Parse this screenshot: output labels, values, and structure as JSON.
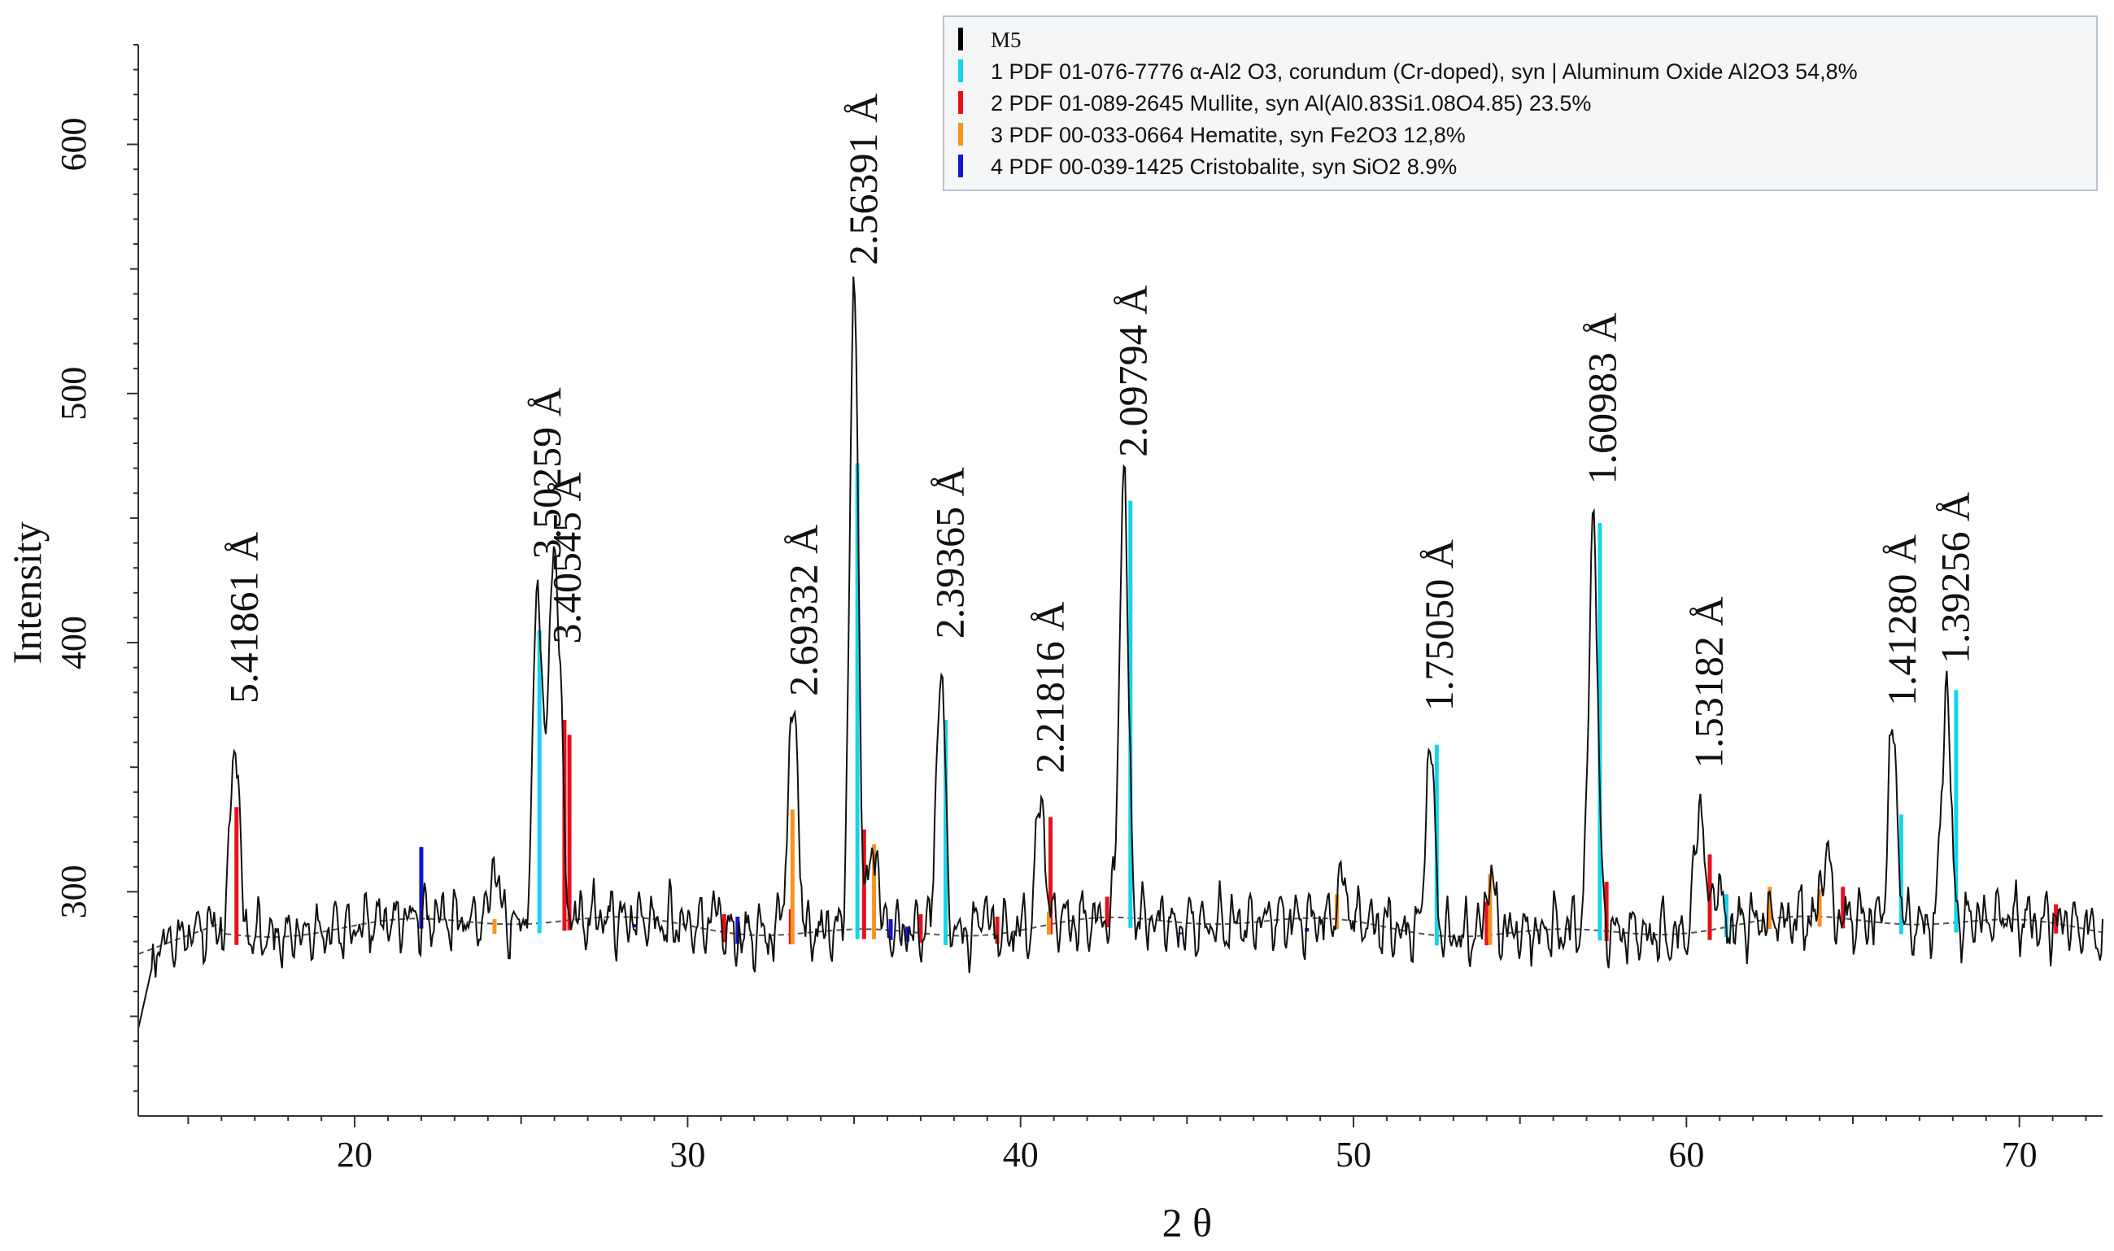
{
  "chart_data": {
    "type": "line",
    "title": "",
    "xlabel": "2 θ",
    "ylabel": "Intensity",
    "xlim": [
      13.5,
      72.5
    ],
    "ylim": [
      210,
      640
    ],
    "x_ticks": [
      20,
      30,
      40,
      50,
      60,
      70
    ],
    "y_ticks": [
      300,
      400,
      500,
      600
    ],
    "x_tick_labels": [
      "20",
      "30",
      "40",
      "50",
      "60",
      "70"
    ],
    "y_tick_labels": [
      "300",
      "400",
      "500",
      "600"
    ],
    "baseline_style": "dashed",
    "legend": {
      "placement": "top-right",
      "entries": [
        {
          "label": "M5",
          "color": "#000000"
        },
        {
          "label": "1 PDF 01-076-7776 α-Al2 O3, corundum (Cr-doped), syn | Aluminum Oxide Al2O3 54,8%",
          "color": "#17d4e8"
        },
        {
          "label": "2 PDF 01-089-2645 Mullite, syn Al(Al0.83Si1.08O4.85) 23.5%",
          "color": "#e8101a"
        },
        {
          "label": "3 PDF 00-033-0664 Hematite, syn Fe2O3 12,8%",
          "color": "#f5941e"
        },
        {
          "label": "4 PDF 00-039-1425 Cristobalite, syn SiO2 8.9%",
          "color": "#1414d2"
        }
      ]
    },
    "peaks": [
      {
        "two_theta": 16.4,
        "intensity": 369,
        "label": "5.41861 Å"
      },
      {
        "two_theta": 25.5,
        "intensity": 427,
        "label": "3.50259 Å"
      },
      {
        "two_theta": 26.1,
        "intensity": 393,
        "label": "3.40545 Å"
      },
      {
        "two_theta": 33.2,
        "intensity": 372,
        "label": "2.69332 Å"
      },
      {
        "two_theta": 35.0,
        "intensity": 545,
        "label": "2.56391 Å"
      },
      {
        "two_theta": 37.6,
        "intensity": 395,
        "label": "2.39365 Å"
      },
      {
        "two_theta": 40.6,
        "intensity": 341,
        "label": "2.21816 Å"
      },
      {
        "two_theta": 43.1,
        "intensity": 468,
        "label": "2.09794 Å"
      },
      {
        "two_theta": 52.3,
        "intensity": 366,
        "label": "1.75050 Å"
      },
      {
        "two_theta": 57.2,
        "intensity": 457,
        "label": "1.60983 Å"
      },
      {
        "two_theta": 60.4,
        "intensity": 343,
        "label": "1.53182 Å"
      },
      {
        "two_theta": 66.2,
        "intensity": 368,
        "label": "1.41280 Å"
      },
      {
        "two_theta": 67.8,
        "intensity": 385,
        "label": "1.39256 Å"
      }
    ],
    "minor_peaks": [
      {
        "two_theta": 25.9,
        "intensity": 387
      },
      {
        "two_theta": 24.2,
        "intensity": 314
      },
      {
        "two_theta": 33.0,
        "intensity": 312
      },
      {
        "two_theta": 35.6,
        "intensity": 322
      },
      {
        "two_theta": 38.9,
        "intensity": 301
      },
      {
        "two_theta": 49.7,
        "intensity": 303
      },
      {
        "two_theta": 54.1,
        "intensity": 313
      },
      {
        "two_theta": 60.9,
        "intensity": 308
      },
      {
        "two_theta": 64.2,
        "intensity": 315
      },
      {
        "two_theta": 30.8,
        "intensity": 296
      }
    ],
    "reference_lines": [
      {
        "phase": 1,
        "two_theta": 25.55,
        "intensity": 405
      },
      {
        "phase": 1,
        "two_theta": 35.1,
        "intensity": 472
      },
      {
        "phase": 1,
        "two_theta": 37.75,
        "intensity": 369
      },
      {
        "phase": 1,
        "two_theta": 43.3,
        "intensity": 457
      },
      {
        "phase": 1,
        "two_theta": 52.5,
        "intensity": 359
      },
      {
        "phase": 1,
        "two_theta": 57.4,
        "intensity": 448
      },
      {
        "phase": 1,
        "two_theta": 61.2,
        "intensity": 299
      },
      {
        "phase": 1,
        "two_theta": 66.45,
        "intensity": 331
      },
      {
        "phase": 1,
        "two_theta": 68.1,
        "intensity": 381
      },
      {
        "phase": 2,
        "two_theta": 16.45,
        "intensity": 334
      },
      {
        "phase": 2,
        "two_theta": 26.3,
        "intensity": 369
      },
      {
        "phase": 2,
        "two_theta": 26.45,
        "intensity": 363
      },
      {
        "phase": 2,
        "two_theta": 31.1,
        "intensity": 291
      },
      {
        "phase": 2,
        "two_theta": 33.1,
        "intensity": 293
      },
      {
        "phase": 2,
        "two_theta": 35.3,
        "intensity": 325
      },
      {
        "phase": 2,
        "two_theta": 37.0,
        "intensity": 291
      },
      {
        "phase": 2,
        "two_theta": 39.3,
        "intensity": 290
      },
      {
        "phase": 2,
        "two_theta": 40.9,
        "intensity": 330
      },
      {
        "phase": 2,
        "two_theta": 42.6,
        "intensity": 298
      },
      {
        "phase": 2,
        "two_theta": 54.0,
        "intensity": 296
      },
      {
        "phase": 2,
        "two_theta": 57.6,
        "intensity": 304
      },
      {
        "phase": 2,
        "two_theta": 60.7,
        "intensity": 315
      },
      {
        "phase": 2,
        "two_theta": 64.7,
        "intensity": 302
      },
      {
        "phase": 2,
        "two_theta": 71.1,
        "intensity": 295
      },
      {
        "phase": 3,
        "two_theta": 24.2,
        "intensity": 289
      },
      {
        "phase": 3,
        "two_theta": 33.15,
        "intensity": 333
      },
      {
        "phase": 3,
        "two_theta": 35.6,
        "intensity": 319
      },
      {
        "phase": 3,
        "two_theta": 40.85,
        "intensity": 292
      },
      {
        "phase": 3,
        "two_theta": 49.5,
        "intensity": 299
      },
      {
        "phase": 3,
        "two_theta": 54.1,
        "intensity": 307
      },
      {
        "phase": 3,
        "two_theta": 62.5,
        "intensity": 302
      },
      {
        "phase": 3,
        "two_theta": 64.0,
        "intensity": 301
      },
      {
        "phase": 4,
        "two_theta": 22.0,
        "intensity": 318
      },
      {
        "phase": 4,
        "two_theta": 28.4,
        "intensity": 287
      },
      {
        "phase": 4,
        "two_theta": 31.5,
        "intensity": 290
      },
      {
        "phase": 4,
        "two_theta": 36.1,
        "intensity": 289
      },
      {
        "phase": 4,
        "two_theta": 36.6,
        "intensity": 286
      },
      {
        "phase": 4,
        "two_theta": 44.8,
        "intensity": 283
      },
      {
        "phase": 4,
        "two_theta": 48.6,
        "intensity": 284
      }
    ]
  }
}
